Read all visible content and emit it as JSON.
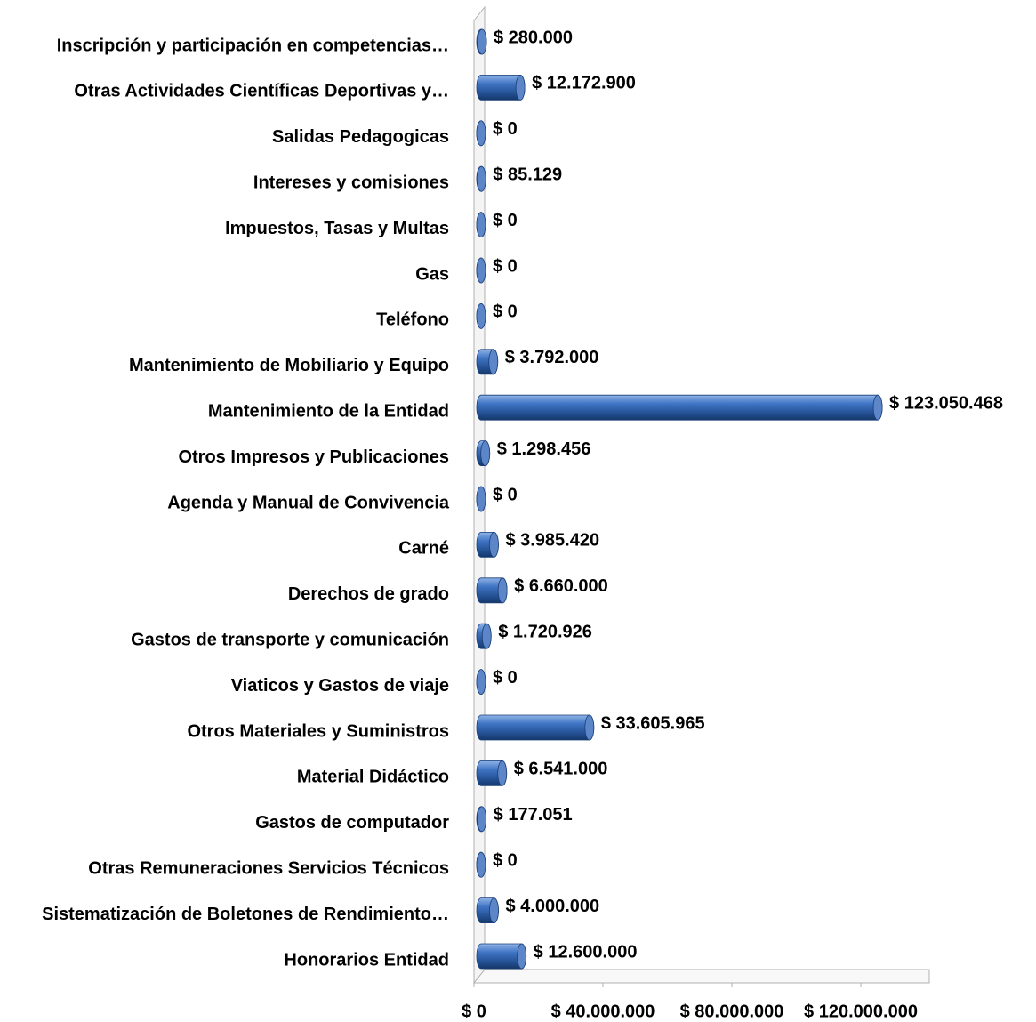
{
  "chart_data": {
    "type": "bar",
    "categories": [
      "Inscripción y participación en competencias…",
      "Otras Actividades Científicas Deportivas y…",
      "Salidas Pedagogicas",
      "Intereses y comisiones",
      "Impuestos, Tasas y Multas",
      "Gas",
      "Teléfono",
      "Mantenimiento de Mobiliario y Equipo",
      "Mantenimiento de la Entidad",
      "Otros Impresos y Publicaciones",
      "Agenda y Manual de Convivencia",
      "Carné",
      "Derechos de grado",
      "Gastos de transporte y comunicación",
      "Viaticos y Gastos de viaje",
      "Otros Materiales y Suministros",
      "Material Didáctico",
      "Gastos de computador",
      "Otras Remuneraciones Servicios Técnicos",
      "Sistematización de Boletones de Rendimiento…",
      "Honorarios Entidad"
    ],
    "values": [
      280000,
      12172900,
      0,
      85129,
      0,
      0,
      0,
      3792000,
      123050468,
      1298456,
      0,
      3985420,
      6660000,
      1720926,
      0,
      33605965,
      6541000,
      177051,
      0,
      4000000,
      12600000
    ],
    "value_labels": [
      "$ 280.000",
      "$ 12.172.900",
      "$ 0",
      "$ 85.129",
      "$ 0",
      "$ 0",
      "$ 0",
      "$ 3.792.000",
      "$ 123.050.468",
      "$ 1.298.456",
      "$ 0",
      "$ 3.985.420",
      "$ 6.660.000",
      "$ 1.720.926",
      "$ 0",
      "$ 33.605.965",
      "$ 6.541.000",
      "$ 177.051",
      "$ 0",
      "$ 4.000.000",
      "$ 12.600.000"
    ],
    "color": "#2e5fa3",
    "xlim": [
      0,
      140000000
    ],
    "xticks": [
      {
        "value": 0,
        "label": "$ 0"
      },
      {
        "value": 40000000,
        "label": "$ 40.000.000"
      },
      {
        "value": 80000000,
        "label": "$ 80.000.000"
      },
      {
        "value": 120000000,
        "label": "$ 120.000.000"
      }
    ]
  }
}
